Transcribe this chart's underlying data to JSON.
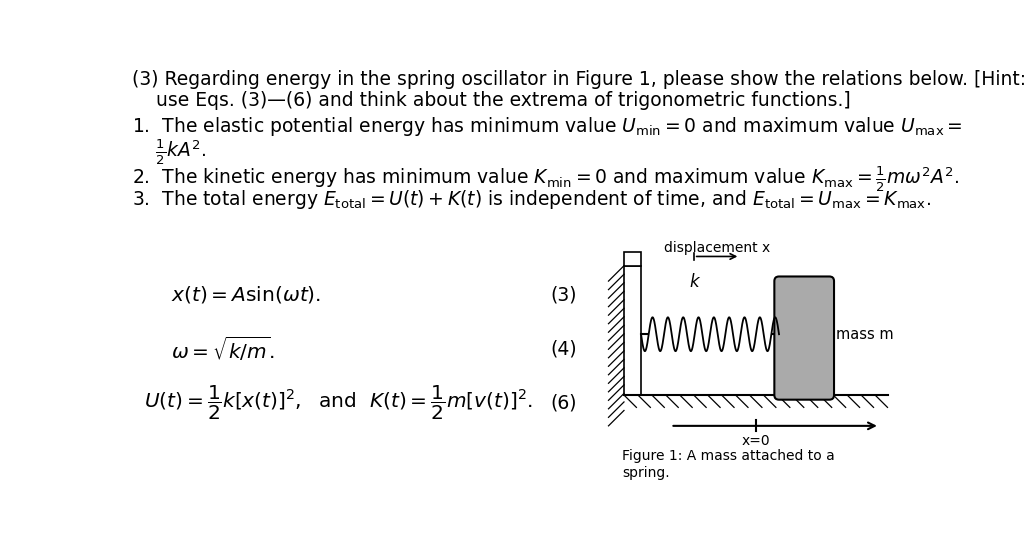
{
  "background_color": "#ffffff",
  "text_color": "#000000",
  "title_line1": "(3) Regarding energy in the spring oscillator in Figure 1, please show the relations below. [Hint:",
  "title_line2": "    use Eqs. (3)—(6) and think about the extrema of trigonometric functions.]",
  "item1a": "1.  The elastic potential energy has minimum value $U_{\\mathrm{min}} = 0$ and maximum value $U_{\\mathrm{max}} =$",
  "item1b": "    $\\frac{1}{2}kA^2$.",
  "item2": "2.  The kinetic energy has minimum value $K_{\\mathrm{min}} = 0$ and maximum value $K_{\\mathrm{max}} = \\frac{1}{2}m\\omega^2A^2$.",
  "item3": "3.  The total energy $E_{\\mathrm{total}} = U(t) + K(t)$ is independent of time, and $E_{\\mathrm{total}} = U_{\\mathrm{max}} = K_{\\mathrm{max}}$.",
  "eq3": "$x(t) = A\\sin(\\omega t).$",
  "eq3_num": "(3)",
  "eq4": "$\\omega = \\sqrt{k/m}.$",
  "eq4_num": "(4)",
  "eq6": "$U(t) = \\dfrac{1}{2}k[x(t)]^2,\\ \\ \\mathrm{and}\\ \\ K(t) = \\dfrac{1}{2}m[v(t)]^2.$",
  "eq6_num": "(6)",
  "disp_label": "displacement x",
  "k_label": "k",
  "mass_label": "mass m",
  "x0_label": "x=0",
  "fig_caption1": "Figure 1: A mass attached to a",
  "fig_caption2": "spring.",
  "wall_color": "#cccccc",
  "floor_hatch_color": "#000000",
  "mass_color": "#aaaaaa",
  "spring_color": "#000000"
}
